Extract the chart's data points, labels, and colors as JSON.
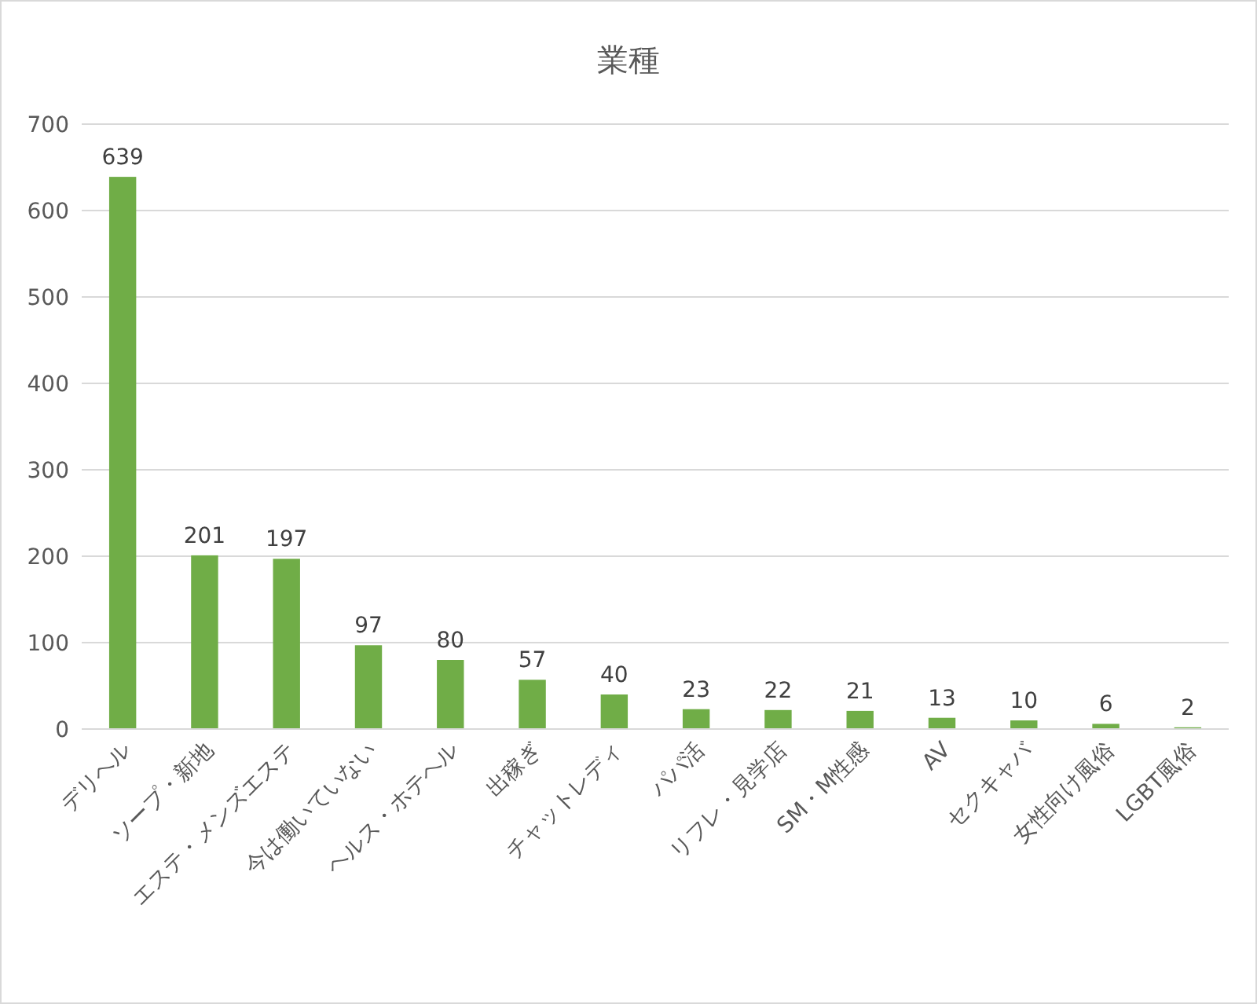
{
  "chart_data": {
    "type": "bar",
    "title": "業種",
    "categories": [
      "デリヘル",
      "ソープ・新地",
      "エステ・メンズエステ",
      "今は働いていない",
      "ヘルス・ホテヘル",
      "出稼ぎ",
      "チャットレディ",
      "パパ活",
      "リフレ・見学店",
      "SM・M性感",
      "AV",
      "セクキャバ",
      "女性向け風俗",
      "LGBT風俗"
    ],
    "values": [
      639,
      201,
      197,
      97,
      80,
      57,
      40,
      23,
      22,
      21,
      13,
      10,
      6,
      2
    ],
    "color": "#70ad47",
    "ylim": [
      0,
      700
    ],
    "yticks": [
      0,
      100,
      200,
      300,
      400,
      500,
      600,
      700
    ],
    "grid": "y",
    "data_labels": true
  }
}
